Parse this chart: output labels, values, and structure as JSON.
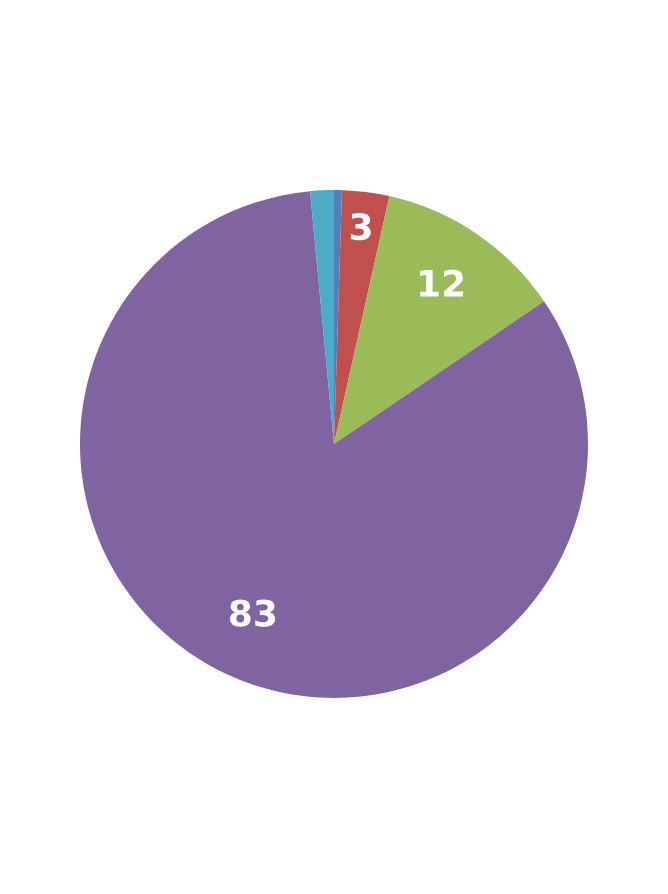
{
  "chart_data": {
    "type": "pie",
    "categories": [
      null,
      null,
      null,
      null,
      null
    ],
    "values": [
      0.5,
      3,
      12,
      83,
      1.5
    ],
    "colors": [
      "#4f81bd",
      "#c0504d",
      "#9bbb59",
      "#8064a2",
      "#4bacc6"
    ],
    "value_labels": [
      null,
      "3",
      "12",
      "83",
      null
    ],
    "legend": false
  }
}
